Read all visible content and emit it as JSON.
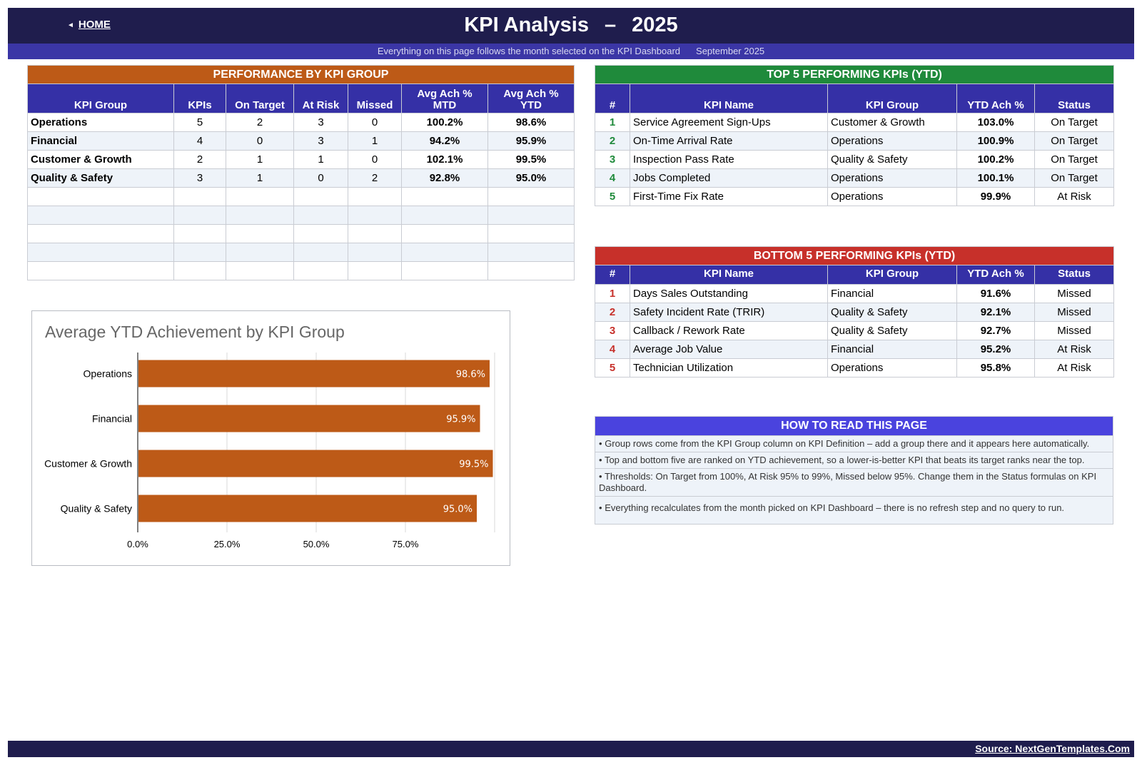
{
  "header": {
    "home_label": "HOME",
    "title": "KPI Analysis",
    "title_sep": "–",
    "year": "2025",
    "subtitle": "Everything on this page follows the month selected on the KPI Dashboard",
    "month": "September 2025"
  },
  "performance": {
    "banner": "PERFORMANCE BY KPI GROUP",
    "headers": [
      "KPI Group",
      "KPIs",
      "On Target",
      "At Risk",
      "Missed",
      "Avg Ach % MTD",
      "Avg Ach % YTD"
    ],
    "header_lines": [
      [
        "KPI Group"
      ],
      [
        "KPIs"
      ],
      [
        "On Target"
      ],
      [
        "At Risk"
      ],
      [
        "Missed"
      ],
      [
        "Avg Ach %",
        "MTD"
      ],
      [
        "Avg Ach %",
        "YTD"
      ]
    ],
    "rows": [
      [
        "Operations",
        "5",
        "2",
        "3",
        "0",
        "100.2%",
        "98.6%"
      ],
      [
        "Financial",
        "4",
        "0",
        "3",
        "1",
        "94.2%",
        "95.9%"
      ],
      [
        "Customer & Growth",
        "2",
        "1",
        "1",
        "0",
        "102.1%",
        "99.5%"
      ],
      [
        "Quality & Safety",
        "3",
        "1",
        "0",
        "2",
        "92.8%",
        "95.0%"
      ]
    ],
    "empty_rows": 5
  },
  "top5": {
    "banner": "TOP 5 PERFORMING KPIs  (YTD)",
    "headers": [
      "#",
      "KPI Name",
      "KPI Group",
      "YTD Ach %",
      "Status"
    ],
    "rows": [
      [
        "1",
        "Service Agreement Sign-Ups",
        "Customer & Growth",
        "103.0%",
        "On Target"
      ],
      [
        "2",
        "On-Time Arrival Rate",
        "Operations",
        "100.9%",
        "On Target"
      ],
      [
        "3",
        "Inspection Pass Rate",
        "Quality & Safety",
        "100.2%",
        "On Target"
      ],
      [
        "4",
        "Jobs Completed",
        "Operations",
        "100.1%",
        "On Target"
      ],
      [
        "5",
        "First-Time Fix Rate",
        "Operations",
        "99.9%",
        "At Risk"
      ]
    ]
  },
  "bottom5": {
    "banner": "BOTTOM 5 PERFORMING KPIs  (YTD)",
    "headers": [
      "#",
      "KPI Name",
      "KPI Group",
      "YTD Ach %",
      "Status"
    ],
    "rows": [
      [
        "1",
        "Days Sales Outstanding",
        "Financial",
        "91.6%",
        "Missed"
      ],
      [
        "2",
        "Safety Incident Rate (TRIR)",
        "Quality & Safety",
        "92.1%",
        "Missed"
      ],
      [
        "3",
        "Callback / Rework Rate",
        "Quality & Safety",
        "92.7%",
        "Missed"
      ],
      [
        "4",
        "Average Job Value",
        "Financial",
        "95.2%",
        "At Risk"
      ],
      [
        "5",
        "Technician Utilization",
        "Operations",
        "95.8%",
        "At Risk"
      ]
    ]
  },
  "how_to": {
    "banner": "HOW TO READ THIS PAGE",
    "bullet": "•",
    "notes": [
      "Group rows come from the KPI Group column on KPI Definition – add a group there and it appears here automatically.",
      "Top and bottom five are ranked on YTD achievement, so a lower-is-better KPI that beats its target ranks near the top.",
      "Thresholds: On Target from 100%, At Risk 95% to 99%, Missed below 95%. Change them in the Status formulas on KPI Dashboard.",
      "Everything recalculates from the month picked on KPI Dashboard – there is no refresh step and no query to run."
    ]
  },
  "chart_data": {
    "type": "bar",
    "orientation": "horizontal",
    "title": "Average YTD Achievement by KPI Group",
    "categories": [
      "Operations",
      "Financial",
      "Customer & Growth",
      "Quality & Safety"
    ],
    "values": [
      98.6,
      95.9,
      99.5,
      95.0
    ],
    "value_labels": [
      "98.6%",
      "95.9%",
      "99.5%",
      "95.0%"
    ],
    "xlim": [
      0,
      100
    ],
    "xticks": [
      0,
      25,
      50,
      75
    ],
    "xtick_labels": [
      "0.0%",
      "25.0%",
      "50.0%",
      "75.0%"
    ],
    "grid": true,
    "color": "#bd5a17"
  },
  "footer": {
    "source": "Source: NextGenTemplates.Com"
  }
}
